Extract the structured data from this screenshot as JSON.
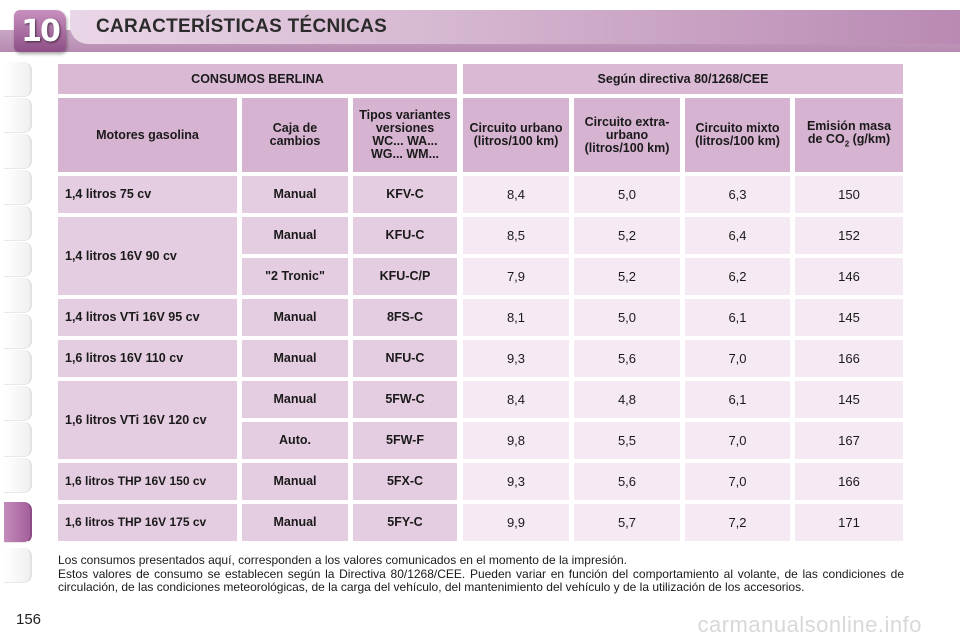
{
  "header": {
    "chapter_number": "10",
    "title": "CARACTERÍSTICAS TÉCNICAS"
  },
  "table": {
    "group_left": "CONSUMOS BERLINA",
    "group_right": "Según directiva 80/1268/CEE",
    "columns": {
      "engine": "Motores gasolina",
      "gearbox": "Caja de cambios",
      "types": "Tipos variantes versiones WC... WA... WG... WM...",
      "urban": "Circuito urbano (litros/100 km)",
      "extra_urban": "Circuito extra-urbano (litros/100 km)",
      "mixed": "Circuito mixto (litros/100 km)",
      "emission_pre": "Emisión masa de CO",
      "emission_sub": "2",
      "emission_post": " (g/km)"
    },
    "engines": [
      {
        "name": "1,4 litros 75 cv"
      },
      {
        "name": "1,4 litros 16V 90 cv"
      },
      {
        "name": "1,4 litros VTi 16V 95 cv"
      },
      {
        "name": "1,6 litros 16V 110 cv"
      },
      {
        "name": "1,6 litros VTi 16V 120 cv"
      },
      {
        "name": "1,6 litros THP 16V 150 cv"
      },
      {
        "name": "1,6 litros THP 16V 175 cv"
      }
    ],
    "rows": [
      {
        "gearbox": "Manual",
        "type": "KFV-C",
        "urban": "8,4",
        "extra": "5,0",
        "mixed": "6,3",
        "co2": "150"
      },
      {
        "gearbox": "Manual",
        "type": "KFU-C",
        "urban": "8,5",
        "extra": "5,2",
        "mixed": "6,4",
        "co2": "152"
      },
      {
        "gearbox": "\"2 Tronic\"",
        "type": "KFU-C/P",
        "urban": "7,9",
        "extra": "5,2",
        "mixed": "6,2",
        "co2": "146"
      },
      {
        "gearbox": "Manual",
        "type": "8FS-C",
        "urban": "8,1",
        "extra": "5,0",
        "mixed": "6,1",
        "co2": "145"
      },
      {
        "gearbox": "Manual",
        "type": "NFU-C",
        "urban": "9,3",
        "extra": "5,6",
        "mixed": "7,0",
        "co2": "166"
      },
      {
        "gearbox": "Manual",
        "type": "5FW-C",
        "urban": "8,4",
        "extra": "4,8",
        "mixed": "6,1",
        "co2": "145"
      },
      {
        "gearbox": "Auto.",
        "type": "5FW-F",
        "urban": "9,8",
        "extra": "5,5",
        "mixed": "7,0",
        "co2": "167"
      },
      {
        "gearbox": "Manual",
        "type": "5FX-C",
        "urban": "9,3",
        "extra": "5,6",
        "mixed": "7,0",
        "co2": "166"
      },
      {
        "gearbox": "Manual",
        "type": "5FY-C",
        "urban": "9,9",
        "extra": "5,7",
        "mixed": "7,2",
        "co2": "171"
      }
    ]
  },
  "footnote": {
    "line1": "Los consumos presentados aquí, corresponden a los valores comunicados en el momento de la impresión.",
    "line2": "Estos valores de consumo se establecen según la Directiva 80/1268/CEE. Pueden variar en función del comportamiento al volante, de las condiciones de circulación, de las condiciones meteorológicas, de la carga del vehículo, del mantenimiento del vehículo y de la utilización de los accesorios."
  },
  "page_number": "156",
  "watermark": "carmanualsonline.info"
}
